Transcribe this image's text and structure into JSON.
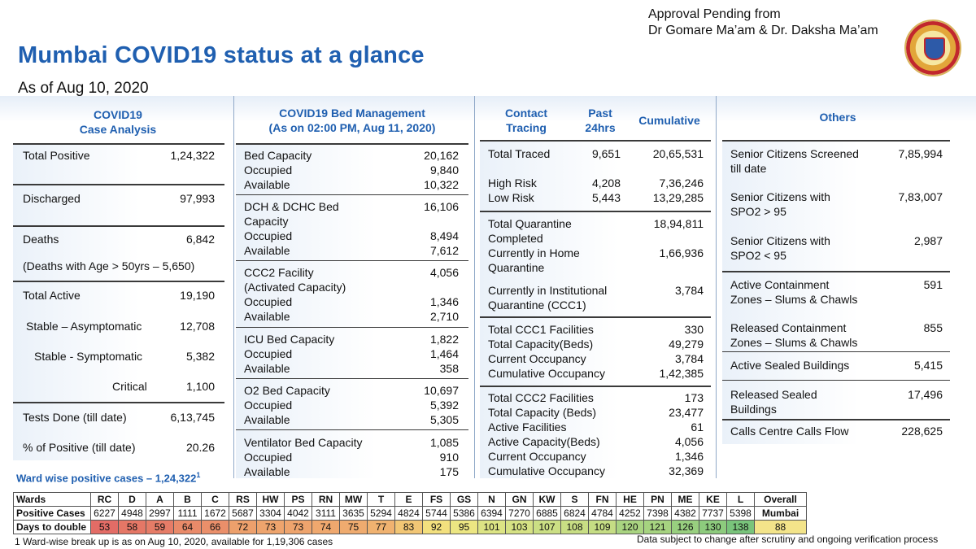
{
  "approval": {
    "line1": "Approval Pending from",
    "line2": "Dr Gomare Ma’am & Dr. Daksha Ma’am"
  },
  "logo": {
    "name": "bmc-crest-icon"
  },
  "title": "Mumbai COVID19 status at a glance",
  "as_of": "As of Aug 10, 2020",
  "case_analysis": {
    "heading1": "COVID19",
    "heading2": "Case Analysis",
    "rows": [
      {
        "label": "Total Positive",
        "value": "1,24,322"
      },
      {
        "label": "Discharged",
        "value": "97,993"
      },
      {
        "label": "Deaths",
        "value": "6,842"
      },
      {
        "label": "(Deaths with Age > 50yrs – 5,650)",
        "value": ""
      },
      {
        "label": "Total Active",
        "value": "19,190"
      },
      {
        "label": "Stable – Asymptomatic",
        "value": "12,708"
      },
      {
        "label": "Stable - Symptomatic",
        "value": "5,382"
      },
      {
        "label": "Critical",
        "value": "1,100"
      },
      {
        "label": "Tests Done (till date)",
        "value": "6,13,745"
      },
      {
        "label": "% of Positive (till date)",
        "value": "20.26"
      }
    ]
  },
  "bed_management": {
    "heading1": "COVID19 Bed Management",
    "heading2": "(As on 02:00 PM, Aug 11, 2020)",
    "groups": [
      {
        "rows": [
          {
            "label": "Bed Capacity",
            "value": "20,162"
          },
          {
            "label": "Occupied",
            "value": "9,840"
          },
          {
            "label": "Available",
            "value": "10,322"
          }
        ]
      },
      {
        "rows": [
          {
            "label": "DCH & DCHC Bed",
            "value": "16,106"
          },
          {
            "label": "Capacity",
            "value": ""
          },
          {
            "label": "Occupied",
            "value": "8,494"
          },
          {
            "label": "Available",
            "value": "7,612"
          }
        ]
      },
      {
        "rows": [
          {
            "label": "CCC2 Facility",
            "value": "4,056"
          },
          {
            "label": "(Activated Capacity)",
            "value": ""
          },
          {
            "label": "Occupied",
            "value": "1,346"
          },
          {
            "label": "Available",
            "value": "2,710"
          }
        ]
      },
      {
        "rows": [
          {
            "label": "ICU Bed Capacity",
            "value": "1,822"
          },
          {
            "label": "Occupied",
            "value": "1,464"
          },
          {
            "label": "Available",
            "value": "358"
          }
        ]
      },
      {
        "rows": [
          {
            "label": "O2 Bed Capacity",
            "value": "10,697"
          },
          {
            "label": "Occupied",
            "value": "5,392"
          },
          {
            "label": "Available",
            "value": "5,305"
          }
        ]
      },
      {
        "rows": [
          {
            "label": "Ventilator Bed Capacity",
            "value": "1,085"
          },
          {
            "label": "Occupied",
            "value": "910"
          },
          {
            "label": "Available",
            "value": "175"
          }
        ]
      }
    ]
  },
  "contact_tracing": {
    "heading_a1": "Contact",
    "heading_a2": "Tracing",
    "heading_b1": "Past",
    "heading_b2": "24hrs",
    "heading_c": "Cumulative",
    "traced": [
      {
        "label": "Total Traced",
        "past": "9,651",
        "cum": "20,65,531"
      },
      {
        "label": "High Risk",
        "past": "4,208",
        "cum": "7,36,246"
      },
      {
        "label": "Low Risk",
        "past": "5,443",
        "cum": "13,29,285"
      }
    ],
    "quarantine": [
      {
        "label1": "Total Quarantine",
        "label2": "Completed",
        "cum": "18,94,811"
      },
      {
        "label1": "Currently in Home",
        "label2": "Quarantine",
        "cum": "1,66,936"
      },
      {
        "label1": "Currently in Institutional",
        "label2": "Quarantine (CCC1)",
        "cum": "3,784"
      }
    ],
    "ccc1": [
      {
        "label": "Total CCC1 Facilities",
        "cum": "330"
      },
      {
        "label": "Total Capacity(Beds)",
        "cum": "49,279"
      },
      {
        "label": "Current Occupancy",
        "cum": "3,784"
      },
      {
        "label": "Cumulative Occupancy",
        "cum": "1,42,385"
      }
    ],
    "ccc2": [
      {
        "label": "Total CCC2 Facilities",
        "cum": "173"
      },
      {
        "label": "Total Capacity (Beds)",
        "cum": "23,477"
      },
      {
        "label": "Active Facilities",
        "cum": "61"
      },
      {
        "label": "Active Capacity(Beds)",
        "cum": "4,056"
      },
      {
        "label": "Current Occupancy",
        "cum": "1,346"
      },
      {
        "label": "Cumulative Occupancy",
        "cum": "32,369"
      }
    ]
  },
  "others": {
    "heading": "Others",
    "rows": [
      {
        "label1": "Senior Citizens Screened",
        "label2": "till date",
        "value": "7,85,994"
      },
      {
        "label1": "Senior Citizens with",
        "label2": "SPO2 > 95",
        "value": "7,83,007"
      },
      {
        "label1": "Senior Citizens with",
        "label2": "SPO2 < 95",
        "value": "2,987"
      },
      {
        "label1": "Active Containment",
        "label2": "Zones – Slums & Chawls",
        "value": "591"
      },
      {
        "label1": "Released Containment",
        "label2": "Zones – Slums & Chawls",
        "value": "855"
      },
      {
        "label1": "Active Sealed Buildings",
        "label2": "",
        "value": "5,415"
      },
      {
        "label1": "Released Sealed",
        "label2": "Buildings",
        "value": "17,496"
      },
      {
        "label1": "Calls Centre Calls Flow",
        "label2": "",
        "value": "228,625"
      }
    ]
  },
  "ward_title": "Ward wise positive cases – 1,24,322",
  "ward_title_sup": "1",
  "ward_table": {
    "row_labels": [
      "Wards",
      "Positive Cases",
      "Days to double"
    ],
    "overall_label": "Overall",
    "overall_positive": "Mumbai",
    "overall_days": "88",
    "overall_color": "#f3e48a",
    "wards": [
      {
        "name": "RC",
        "cases": "6227",
        "days": "53",
        "color": "#e36c66"
      },
      {
        "name": "D",
        "cases": "4948",
        "days": "58",
        "color": "#e57766"
      },
      {
        "name": "A",
        "cases": "2997",
        "days": "59",
        "color": "#e67c67"
      },
      {
        "name": "B",
        "cases": "1111",
        "days": "64",
        "color": "#e98a69"
      },
      {
        "name": "C",
        "cases": "1672",
        "days": "66",
        "color": "#ea8f6a"
      },
      {
        "name": "RS",
        "cases": "5687",
        "days": "72",
        "color": "#eda06c"
      },
      {
        "name": "HW",
        "cases": "3304",
        "days": "73",
        "color": "#eea46d"
      },
      {
        "name": "PS",
        "cases": "4042",
        "days": "73",
        "color": "#eea46d"
      },
      {
        "name": "RN",
        "cases": "3111",
        "days": "74",
        "color": "#efa86e"
      },
      {
        "name": "MW",
        "cases": "3635",
        "days": "75",
        "color": "#efab6f"
      },
      {
        "name": "T",
        "cases": "5294",
        "days": "77",
        "color": "#f0b270"
      },
      {
        "name": "E",
        "cases": "4824",
        "days": "83",
        "color": "#f2c675"
      },
      {
        "name": "FS",
        "cases": "5744",
        "days": "92",
        "color": "#f3e07e"
      },
      {
        "name": "GS",
        "cases": "5386",
        "days": "95",
        "color": "#ece682"
      },
      {
        "name": "N",
        "cases": "6394",
        "days": "101",
        "color": "#dce484"
      },
      {
        "name": "GN",
        "cases": "7270",
        "days": "103",
        "color": "#d6e284"
      },
      {
        "name": "KW",
        "cases": "6885",
        "days": "107",
        "color": "#cbdf84"
      },
      {
        "name": "S",
        "cases": "6824",
        "days": "108",
        "color": "#c8de84"
      },
      {
        "name": "FN",
        "cases": "4784",
        "days": "109",
        "color": "#c5dd84"
      },
      {
        "name": "HE",
        "cases": "4252",
        "days": "120",
        "color": "#a9d481"
      },
      {
        "name": "PN",
        "cases": "7398",
        "days": "121",
        "color": "#a6d380"
      },
      {
        "name": "ME",
        "cases": "4382",
        "days": "126",
        "color": "#98cf7f"
      },
      {
        "name": "KE",
        "cases": "7737",
        "days": "130",
        "color": "#8dcb7d"
      },
      {
        "name": "L",
        "cases": "5398",
        "days": "138",
        "color": "#79c47b"
      }
    ]
  },
  "footnote": "1 Ward-wise break up is as on Aug 10, 2020, available for 1,19,306 cases",
  "disclaimer": "Data subject to change after scrutiny and ongoing verification process"
}
